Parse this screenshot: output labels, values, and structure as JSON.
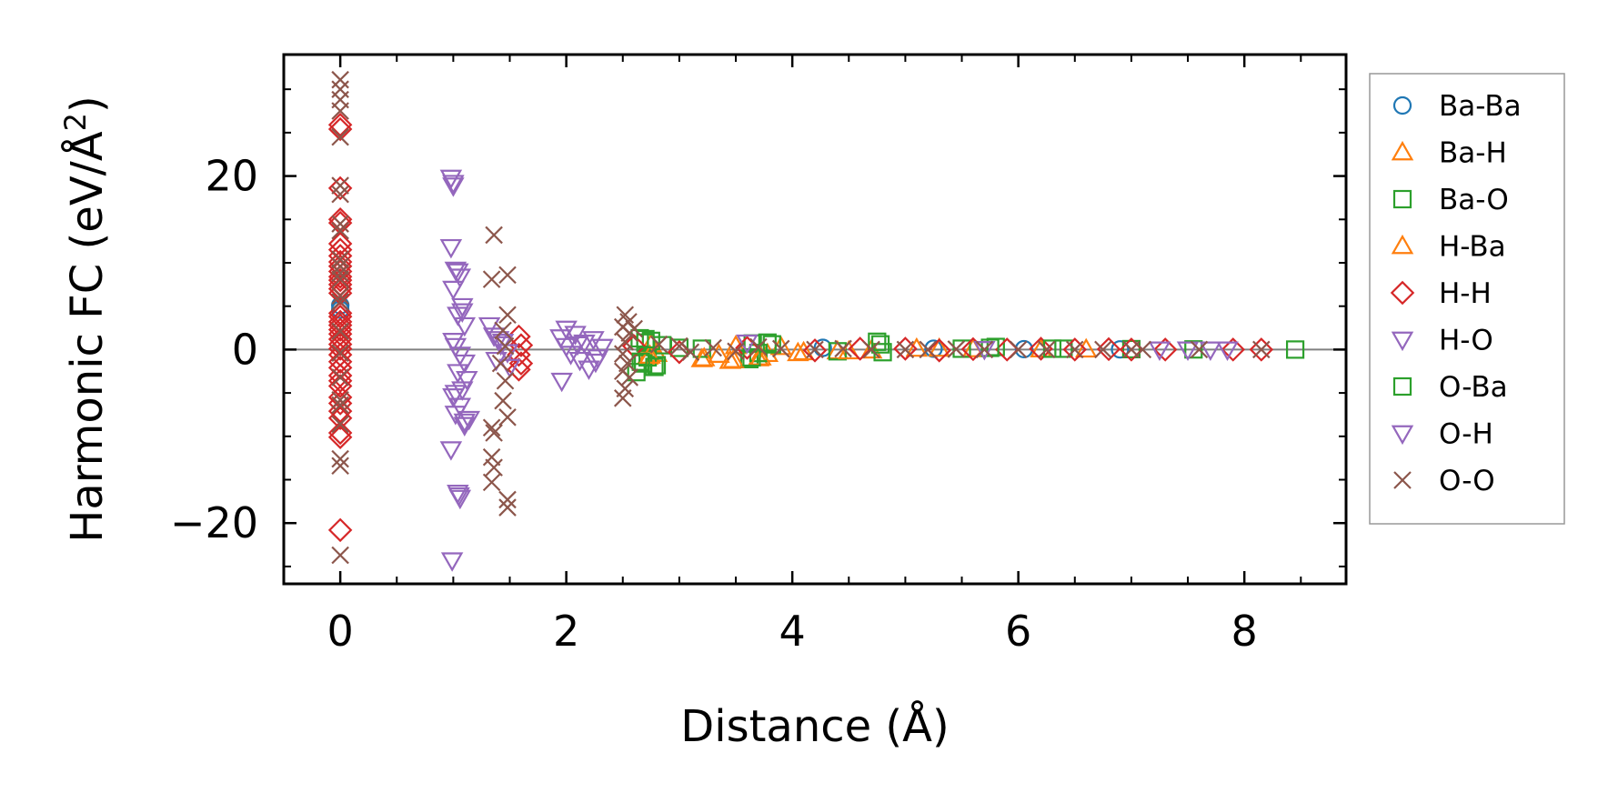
{
  "chart_data": {
    "type": "scatter",
    "xlabel": "Distance (Å)",
    "ylabel_main": "Harmonic FC (eV/Å",
    "ylabel_sup": "2",
    "ylabel_close": ")",
    "xlim": [
      -0.5,
      8.9
    ],
    "ylim": [
      -27,
      34
    ],
    "x_ticks": [
      0,
      2,
      4,
      6,
      8
    ],
    "x_tick_labels": [
      "0",
      "2",
      "4",
      "6",
      "8"
    ],
    "y_ticks": [
      -20,
      0,
      20
    ],
    "y_tick_labels": [
      "−20",
      "0",
      "20"
    ],
    "grid": false,
    "zero_line": true,
    "legend_position": "outside-right",
    "series": [
      {
        "name": "Ba-Ba",
        "marker": "circle",
        "color": "#1f77b4",
        "points": [
          [
            0,
            4.6
          ],
          [
            0,
            5.1
          ],
          [
            4.27,
            0.2
          ],
          [
            5.25,
            0.1
          ],
          [
            6.05,
            0.05
          ],
          [
            6.9,
            0.02
          ]
        ]
      },
      {
        "name": "Ba-H",
        "marker": "triangle-up",
        "color": "#ff7f0e",
        "points": [
          [
            2.72,
            -0.8
          ],
          [
            2.75,
            0.6
          ],
          [
            2.8,
            -0.5
          ],
          [
            3.2,
            -1.1
          ],
          [
            3.35,
            -0.6
          ],
          [
            3.45,
            -1.3
          ],
          [
            3.5,
            0.4
          ],
          [
            3.7,
            -1.0
          ],
          [
            3.78,
            -0.5
          ],
          [
            3.9,
            0.3
          ],
          [
            4.1,
            -0.3
          ],
          [
            4.4,
            -0.2
          ],
          [
            4.7,
            -0.1
          ],
          [
            5.1,
            0.1
          ],
          [
            5.6,
            0.05
          ],
          [
            6.2,
            0.03
          ]
        ]
      },
      {
        "name": "Ba-O",
        "marker": "square",
        "color": "#2ca02c",
        "points": [
          [
            2.62,
            -2.6
          ],
          [
            2.65,
            1.3
          ],
          [
            2.68,
            -1.6
          ],
          [
            2.7,
            0.8
          ],
          [
            2.72,
            -0.9
          ],
          [
            2.75,
            1.0
          ],
          [
            2.8,
            -1.8
          ],
          [
            2.85,
            0.5
          ],
          [
            3.0,
            0.2
          ],
          [
            3.2,
            0.1
          ],
          [
            3.62,
            -1.1
          ],
          [
            3.65,
            0.7
          ],
          [
            3.7,
            -0.4
          ],
          [
            3.82,
            0.6
          ],
          [
            4.4,
            -0.2
          ],
          [
            4.75,
            0.9
          ],
          [
            4.8,
            -0.3
          ],
          [
            5.5,
            0.1
          ],
          [
            5.8,
            0.3
          ],
          [
            6.4,
            0.1
          ],
          [
            7.0,
            0.05
          ],
          [
            7.55,
            0.02
          ],
          [
            8.45,
            0.0
          ]
        ]
      },
      {
        "name": "H-Ba",
        "marker": "triangle-up",
        "color": "#ff7f0e",
        "points": [
          [
            2.74,
            -0.7
          ],
          [
            3.22,
            -1.0
          ],
          [
            3.48,
            -1.2
          ],
          [
            3.72,
            -0.9
          ],
          [
            4.05,
            -0.4
          ],
          [
            4.5,
            -0.2
          ],
          [
            5.3,
            0.1
          ],
          [
            6.6,
            0.02
          ]
        ]
      },
      {
        "name": "H-H",
        "marker": "diamond",
        "color": "#d62728",
        "points": [
          [
            0,
            25.4
          ],
          [
            0,
            25.9
          ],
          [
            0,
            18.6
          ],
          [
            0,
            15.0
          ],
          [
            0,
            14.6
          ],
          [
            0,
            12.2
          ],
          [
            0,
            11.5
          ],
          [
            0,
            10.8
          ],
          [
            0,
            10.1
          ],
          [
            0,
            9.6
          ],
          [
            0,
            9.0
          ],
          [
            0,
            8.4
          ],
          [
            0,
            8.0
          ],
          [
            0,
            7.5
          ],
          [
            0,
            7.0
          ],
          [
            0,
            6.5
          ],
          [
            0,
            4.2
          ],
          [
            0,
            3.8
          ],
          [
            0,
            3.2
          ],
          [
            0,
            2.8
          ],
          [
            0,
            2.3
          ],
          [
            0,
            1.8
          ],
          [
            0,
            1.2
          ],
          [
            0,
            0.6
          ],
          [
            0,
            0.1
          ],
          [
            0,
            -0.6
          ],
          [
            0,
            -1.4
          ],
          [
            0,
            -2.1
          ],
          [
            0,
            -3.0
          ],
          [
            0,
            -3.6
          ],
          [
            0,
            -4.2
          ],
          [
            0,
            -5.5
          ],
          [
            0,
            -6.2
          ],
          [
            0,
            -7.1
          ],
          [
            0,
            -7.9
          ],
          [
            0,
            -9.6
          ],
          [
            0,
            -10.1
          ],
          [
            0,
            -20.8
          ],
          [
            1.58,
            1.5
          ],
          [
            1.6,
            0.5
          ],
          [
            1.58,
            -0.6
          ],
          [
            1.6,
            -1.6
          ],
          [
            1.58,
            -2.3
          ],
          [
            2.6,
            0.4
          ],
          [
            3.0,
            -0.3
          ],
          [
            3.6,
            0.2
          ],
          [
            4.2,
            -0.1
          ],
          [
            4.6,
            0.1
          ],
          [
            5.0,
            0.1
          ],
          [
            5.3,
            -0.1
          ],
          [
            5.6,
            0.05
          ],
          [
            5.9,
            0.0
          ],
          [
            6.2,
            0.1
          ],
          [
            6.5,
            0.0
          ],
          [
            6.8,
            0.05
          ],
          [
            7.0,
            0.0
          ],
          [
            7.3,
            0.0
          ],
          [
            7.9,
            0.0
          ],
          [
            8.15,
            0.0
          ]
        ]
      },
      {
        "name": "H-O",
        "marker": "triangle-down",
        "color": "#9467bd",
        "points": [
          [
            0.98,
            19.8
          ],
          [
            1.0,
            19.2
          ],
          [
            0.98,
            11.8
          ],
          [
            1.02,
            9.2
          ],
          [
            1.06,
            8.4
          ],
          [
            1.0,
            7.0
          ],
          [
            1.08,
            5.0
          ],
          [
            1.04,
            4.0
          ],
          [
            1.1,
            2.8
          ],
          [
            1.0,
            1.0
          ],
          [
            1.02,
            0.4
          ],
          [
            1.06,
            -0.6
          ],
          [
            1.1,
            -1.5
          ],
          [
            1.04,
            -2.6
          ],
          [
            1.12,
            -3.4
          ],
          [
            1.08,
            -4.6
          ],
          [
            1.0,
            -5.4
          ],
          [
            1.06,
            -6.5
          ],
          [
            1.02,
            -7.4
          ],
          [
            1.14,
            -8.0
          ],
          [
            1.1,
            -8.7
          ],
          [
            0.98,
            -11.5
          ],
          [
            1.04,
            -16.5
          ],
          [
            1.06,
            -17.1
          ],
          [
            0.99,
            -24.3
          ],
          [
            1.32,
            2.8
          ],
          [
            1.36,
            1.6
          ],
          [
            1.42,
            0.6
          ],
          [
            1.48,
            -0.3
          ],
          [
            1.38,
            -1.2
          ],
          [
            1.5,
            -2.0
          ],
          [
            1.44,
            0.9
          ],
          [
            1.95,
            1.4
          ],
          [
            2.0,
            0.4
          ],
          [
            2.04,
            -0.5
          ],
          [
            2.08,
            1.8
          ],
          [
            2.12,
            -1.2
          ],
          [
            2.16,
            0.8
          ],
          [
            2.2,
            -2.2
          ],
          [
            2.24,
            1.2
          ],
          [
            2.28,
            -0.9
          ],
          [
            2.32,
            0.3
          ],
          [
            1.96,
            -3.6
          ],
          [
            2.0,
            2.4
          ],
          [
            7.25,
            0.0
          ],
          [
            7.7,
            0.0
          ]
        ]
      },
      {
        "name": "O-Ba",
        "marker": "square",
        "color": "#2ca02c",
        "points": [
          [
            2.66,
            -1.4
          ],
          [
            2.7,
            1.2
          ],
          [
            2.78,
            -2.0
          ],
          [
            3.64,
            -0.9
          ],
          [
            3.78,
            0.8
          ],
          [
            4.78,
            0.6
          ],
          [
            5.75,
            0.2
          ],
          [
            6.3,
            0.1
          ]
        ]
      },
      {
        "name": "O-H",
        "marker": "triangle-down",
        "color": "#9467bd",
        "points": [
          [
            1.0,
            18.9
          ],
          [
            1.04,
            9.0
          ],
          [
            1.08,
            4.4
          ],
          [
            1.02,
            -5.0
          ],
          [
            1.1,
            -8.3
          ],
          [
            1.05,
            -16.8
          ],
          [
            1.4,
            1.2
          ],
          [
            2.1,
            0.6
          ],
          [
            2.26,
            -1.4
          ],
          [
            3.6,
            0.8
          ],
          [
            5.7,
            0.05
          ],
          [
            7.5,
            0.0
          ],
          [
            7.85,
            0.0
          ]
        ]
      },
      {
        "name": "O-O",
        "marker": "x",
        "color": "#8c564b",
        "points": [
          [
            0,
            31.1
          ],
          [
            0,
            30.0
          ],
          [
            0,
            28.8
          ],
          [
            0,
            27.5
          ],
          [
            0,
            24.5
          ],
          [
            0,
            18.9
          ],
          [
            0,
            17.9
          ],
          [
            0,
            14.5
          ],
          [
            0,
            13.7
          ],
          [
            0,
            10.4
          ],
          [
            0,
            9.6
          ],
          [
            0,
            8.8
          ],
          [
            0,
            8.1
          ],
          [
            0,
            6.2
          ],
          [
            0,
            5.5
          ],
          [
            0,
            2.1
          ],
          [
            0,
            -0.4
          ],
          [
            0,
            -3.2
          ],
          [
            0,
            -5.8
          ],
          [
            0,
            -6.4
          ],
          [
            0,
            -8.6
          ],
          [
            0,
            -12.6
          ],
          [
            0,
            -13.4
          ],
          [
            0,
            -23.7
          ],
          [
            1.36,
            13.2
          ],
          [
            1.48,
            8.6
          ],
          [
            1.34,
            8.1
          ],
          [
            1.48,
            4.0
          ],
          [
            1.44,
            2.2
          ],
          [
            1.46,
            0.4
          ],
          [
            1.42,
            -1.6
          ],
          [
            1.46,
            -3.6
          ],
          [
            1.44,
            -5.9
          ],
          [
            1.48,
            -7.8
          ],
          [
            1.34,
            -9.0
          ],
          [
            1.36,
            -9.6
          ],
          [
            1.34,
            -12.4
          ],
          [
            1.36,
            -13.6
          ],
          [
            1.34,
            -15.3
          ],
          [
            1.48,
            -17.3
          ],
          [
            1.48,
            -18.2
          ],
          [
            2.52,
            4.0
          ],
          [
            2.55,
            3.2
          ],
          [
            2.5,
            2.6
          ],
          [
            2.56,
            1.9
          ],
          [
            2.52,
            0.9
          ],
          [
            2.5,
            -0.5
          ],
          [
            2.54,
            -1.6
          ],
          [
            2.5,
            -2.5
          ],
          [
            2.56,
            -3.2
          ],
          [
            2.52,
            -4.5
          ],
          [
            2.5,
            -5.6
          ],
          [
            2.6,
            2.4
          ],
          [
            2.82,
            0.6
          ],
          [
            3.0,
            0.4
          ],
          [
            3.1,
            -0.3
          ],
          [
            3.3,
            0.2
          ],
          [
            3.5,
            -0.2
          ],
          [
            3.7,
            0.3
          ],
          [
            3.9,
            0.1
          ],
          [
            4.2,
            0.0
          ],
          [
            4.45,
            0.1
          ],
          [
            4.7,
            0.0
          ],
          [
            5.0,
            0.0
          ],
          [
            5.2,
            0.0
          ],
          [
            5.45,
            0.05
          ],
          [
            5.7,
            0.0
          ],
          [
            6.0,
            0.0
          ],
          [
            6.25,
            0.0
          ],
          [
            6.5,
            0.0
          ],
          [
            6.75,
            0.0
          ],
          [
            7.0,
            0.0
          ],
          [
            7.1,
            0.0
          ],
          [
            7.6,
            0.0
          ],
          [
            8.15,
            0.0
          ]
        ]
      }
    ]
  }
}
